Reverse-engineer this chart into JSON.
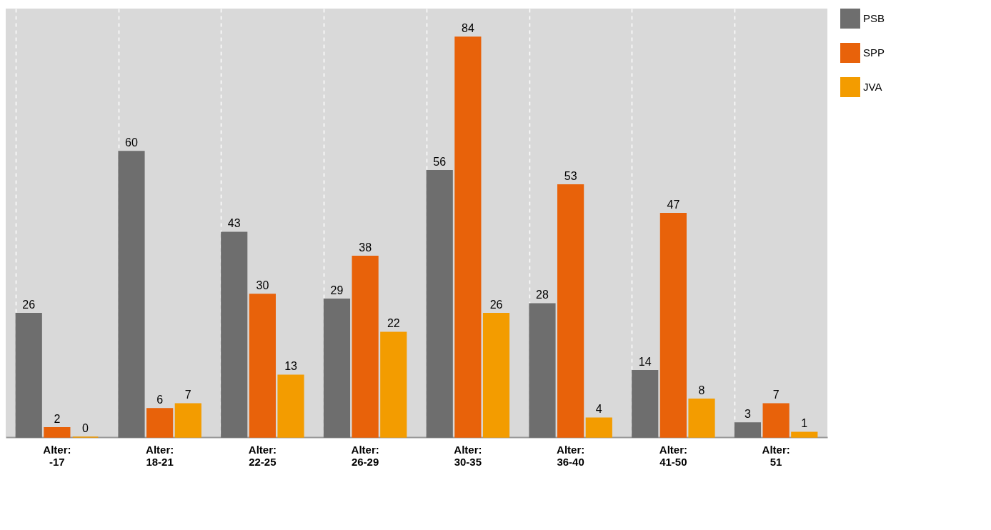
{
  "chart_data": {
    "type": "bar",
    "categories": [
      "Alter:\n-17",
      "Alter:\n18-21",
      "Alter:\n22-25",
      "Alter:\n26-29",
      "Alter:\n30-35",
      "Alter:\n36-40",
      "Alter:\n41-50",
      "Alter:\n51"
    ],
    "series": [
      {
        "name": "PSB",
        "color": "#6e6e6e",
        "values": [
          26,
          60,
          43,
          29,
          56,
          28,
          14,
          3
        ]
      },
      {
        "name": "SPP",
        "color": "#e8620a",
        "values": [
          2,
          6,
          30,
          38,
          84,
          53,
          47,
          7
        ]
      },
      {
        "name": "JVA",
        "color": "#f39c00",
        "values": [
          0,
          7,
          13,
          22,
          26,
          4,
          8,
          1
        ]
      }
    ],
    "data_labels": true,
    "grid": "x",
    "legend": "top right",
    "tick_labels": "x"
  }
}
